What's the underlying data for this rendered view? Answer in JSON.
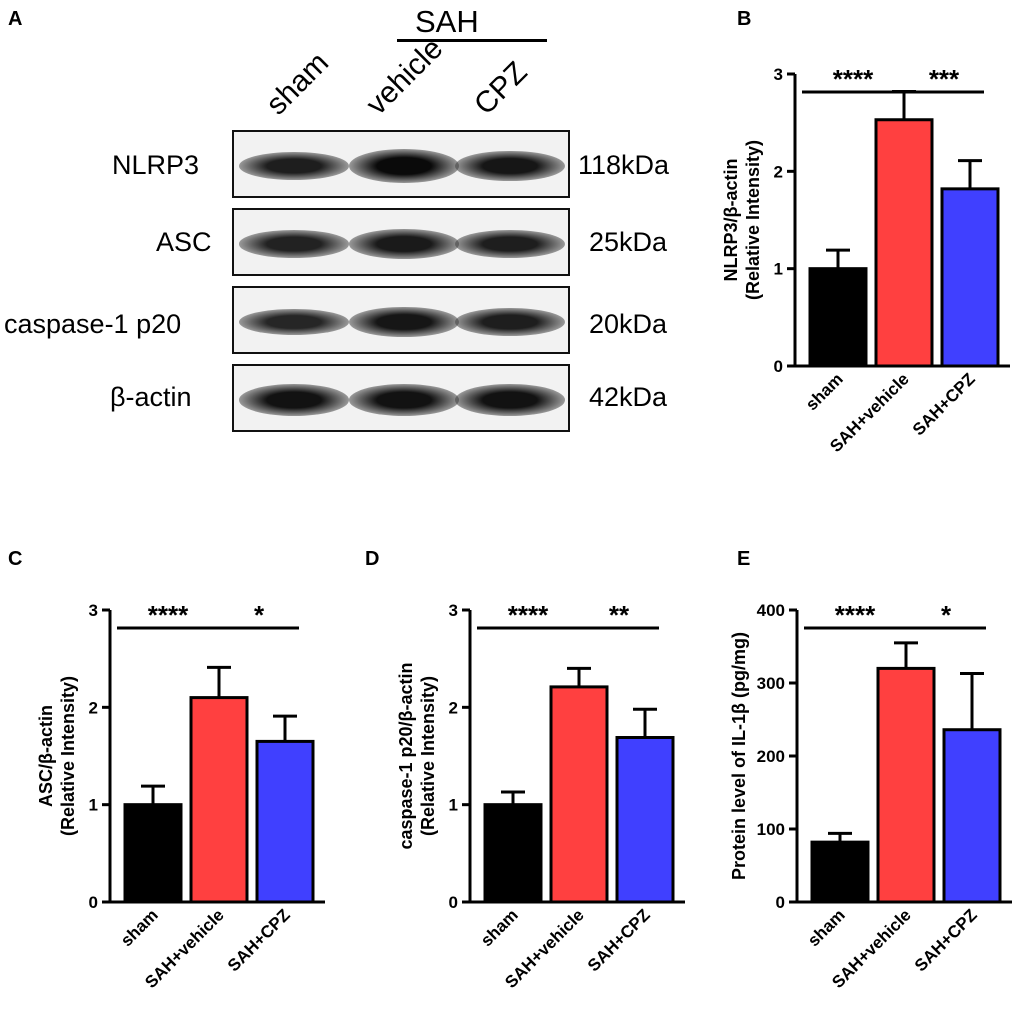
{
  "panels": {
    "A": "A",
    "B": "B",
    "C": "C",
    "D": "D",
    "E": "E"
  },
  "western_blot": {
    "group_header": "SAH",
    "lanes": [
      "sham",
      "vehicle",
      "CPZ"
    ],
    "rows": [
      {
        "protein": "NLRP3",
        "weight": "118kDa",
        "intensity": [
          0.75,
          1.0,
          0.85
        ]
      },
      {
        "protein": "ASC",
        "weight": "25kDa",
        "intensity": [
          0.7,
          0.8,
          0.75
        ]
      },
      {
        "protein": "caspase-1 p20",
        "weight": "20kDa",
        "intensity": [
          0.65,
          0.85,
          0.75
        ]
      },
      {
        "protein": "β-actin",
        "weight": "42kDa",
        "intensity": [
          0.9,
          0.9,
          0.9
        ]
      }
    ]
  },
  "colors": {
    "sham": "#000000",
    "SAH+vehicle": "#ff4040",
    "SAH+CPZ": "#4040ff"
  },
  "chart_data": [
    {
      "panel": "B",
      "type": "bar",
      "categories": [
        "sham",
        "SAH+vehicle",
        "SAH+CPZ"
      ],
      "values": [
        1.0,
        2.53,
        1.82
      ],
      "errors": [
        0.19,
        0.29,
        0.29
      ],
      "ylabel_line1": "NLRP3/β-actin",
      "ylabel_line2": "(Relative Intensity)",
      "ylim": [
        0,
        3
      ],
      "yticks": [
        0,
        1,
        2,
        3
      ],
      "significance": [
        {
          "from": 0,
          "to": 1,
          "label": "****"
        },
        {
          "from": 1,
          "to": 2,
          "label": "***"
        }
      ]
    },
    {
      "panel": "C",
      "type": "bar",
      "categories": [
        "sham",
        "SAH+vehicle",
        "SAH+CPZ"
      ],
      "values": [
        1.0,
        2.1,
        1.65
      ],
      "errors": [
        0.19,
        0.31,
        0.26
      ],
      "ylabel_line1": "ASC/β-actin",
      "ylabel_line2": "(Relative Intensity)",
      "ylim": [
        0,
        3
      ],
      "yticks": [
        0,
        1,
        2,
        3
      ],
      "significance": [
        {
          "from": 0,
          "to": 1,
          "label": "****"
        },
        {
          "from": 1,
          "to": 2,
          "label": "*"
        }
      ]
    },
    {
      "panel": "D",
      "type": "bar",
      "categories": [
        "sham",
        "SAH+vehicle",
        "SAH+CPZ"
      ],
      "values": [
        1.0,
        2.21,
        1.69
      ],
      "errors": [
        0.13,
        0.19,
        0.29
      ],
      "ylabel_line1": "caspase-1 p20/β-actin",
      "ylabel_line2": "(Relative Intensity)",
      "ylim": [
        0,
        3
      ],
      "yticks": [
        0,
        1,
        2,
        3
      ],
      "significance": [
        {
          "from": 0,
          "to": 1,
          "label": "****"
        },
        {
          "from": 1,
          "to": 2,
          "label": "**"
        }
      ]
    },
    {
      "panel": "E",
      "type": "bar",
      "categories": [
        "sham",
        "SAH+vehicle",
        "SAH+CPZ"
      ],
      "values": [
        82,
        320,
        236
      ],
      "errors": [
        12,
        35,
        77
      ],
      "ylabel_line1": "Protein level of IL-1β (pg/mg)",
      "ylabel_line2": "",
      "ylim": [
        0,
        400
      ],
      "yticks": [
        0,
        100,
        200,
        300,
        400
      ],
      "significance": [
        {
          "from": 0,
          "to": 1,
          "label": "****"
        },
        {
          "from": 1,
          "to": 2,
          "label": "*"
        }
      ]
    }
  ]
}
